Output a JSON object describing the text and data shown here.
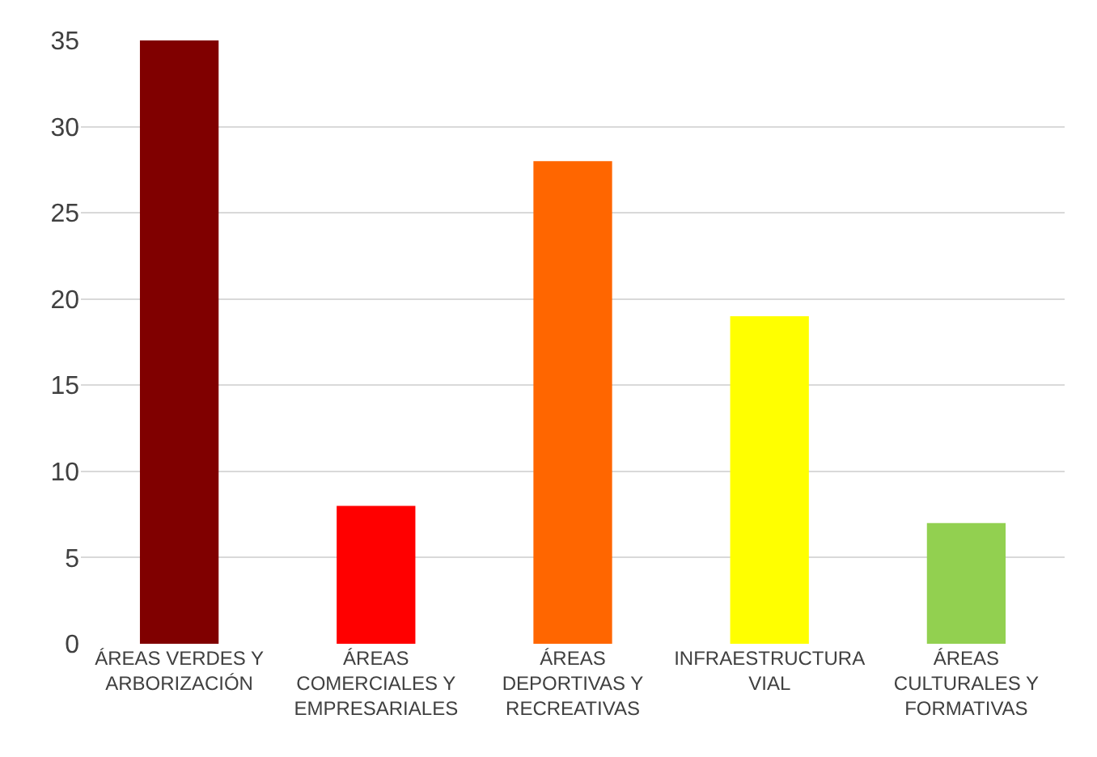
{
  "chart_data": {
    "type": "bar",
    "categories": [
      "ÁREAS VERDES Y ARBORIZACIÓN",
      "ÁREAS COMERCIALES Y EMPRESARIALES",
      "ÁREAS DEPORTIVAS Y RECREATIVAS",
      "INFRAESTRUCTURA VIAL",
      "ÁREAS CULTURALES Y FORMATIVAS"
    ],
    "values": [
      35,
      8,
      28,
      19,
      7
    ],
    "colors": [
      "#800000",
      "#ff0000",
      "#ff6600",
      "#ffff00",
      "#92d050"
    ],
    "ylim": [
      0,
      35
    ],
    "yticks": [
      0,
      5,
      10,
      15,
      20,
      25,
      30,
      35
    ],
    "grid": "y",
    "legend": false
  }
}
